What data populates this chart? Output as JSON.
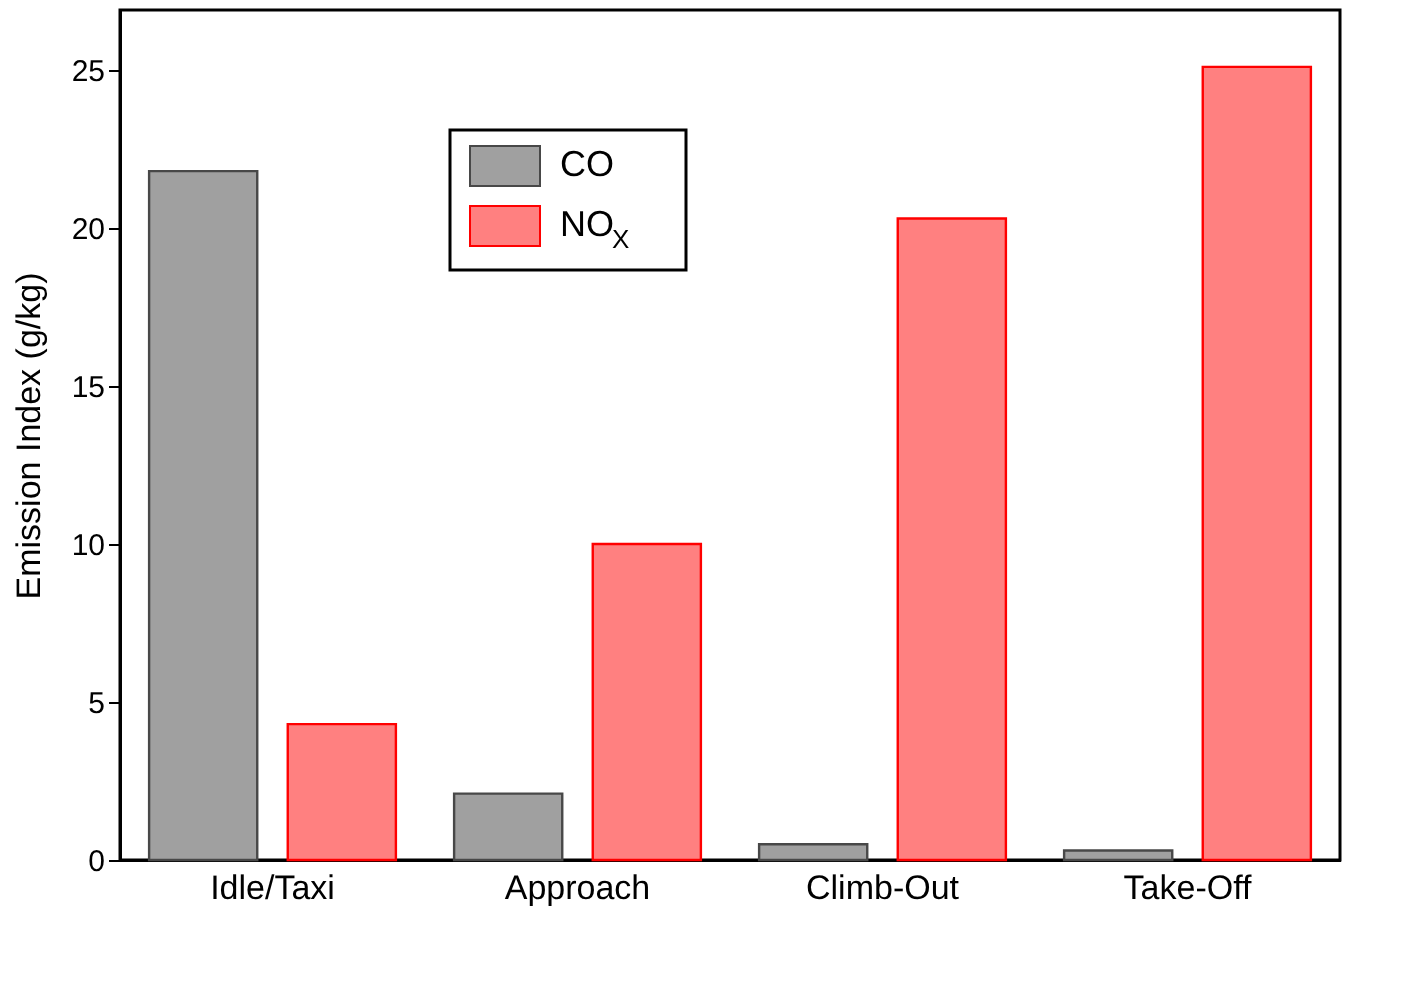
{
  "chart_data": {
    "type": "bar",
    "ylabel": "Emission Index (g/kg)",
    "categories": [
      "Idle/Taxi",
      "Approach",
      "Climb-Out",
      "Take-Off"
    ],
    "series": [
      {
        "name": "CO",
        "color": "#a0a0a0",
        "values": [
          21.8,
          2.1,
          0.5,
          0.3
        ]
      },
      {
        "name": "NO$_{X}$",
        "color": "#ff8080",
        "values": [
          4.3,
          10.0,
          20.3,
          25.1
        ]
      }
    ],
    "ylim": [
      0,
      26.9
    ],
    "yticks": [
      0,
      5,
      10,
      15,
      20,
      25
    ],
    "grid": false,
    "legend": "top left"
  }
}
